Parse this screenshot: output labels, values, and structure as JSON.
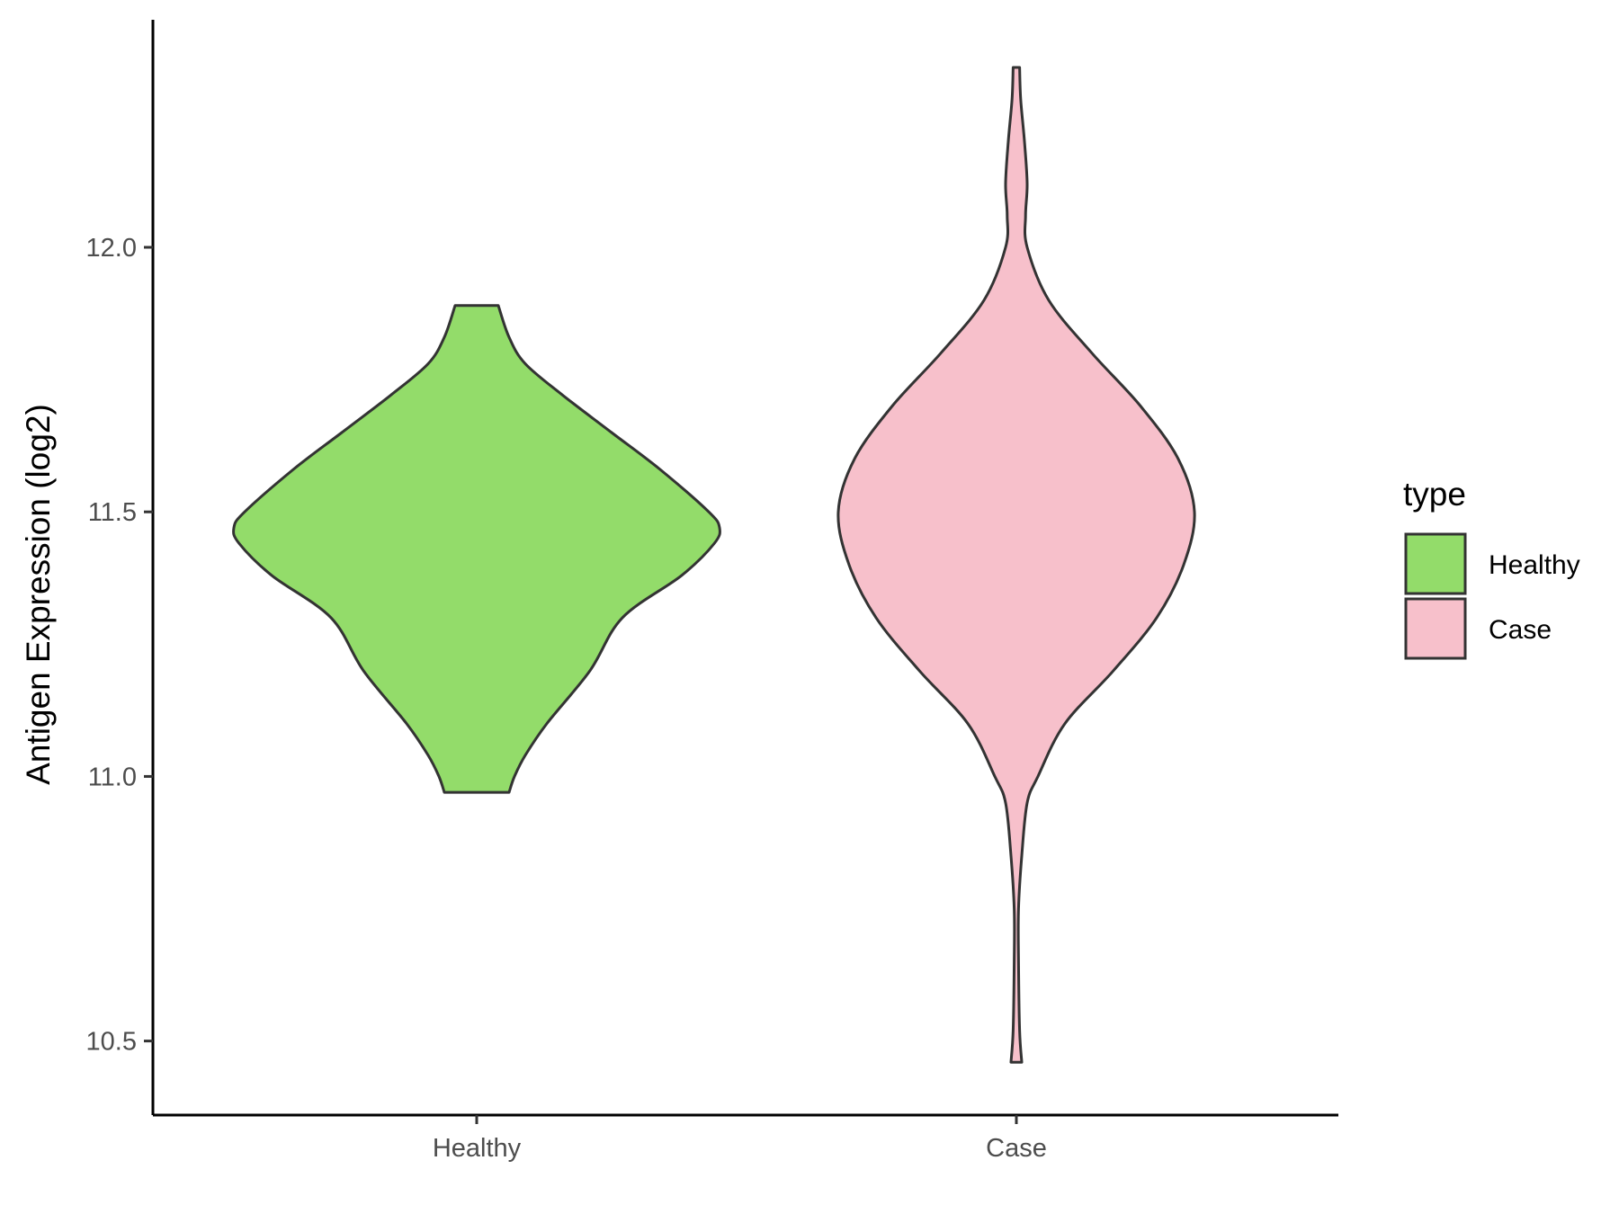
{
  "chart_data": {
    "type": "violin",
    "ylabel": "Antigen Expression (log2)",
    "xlabel": "",
    "ylim": [
      10.36,
      12.43
    ],
    "yticks": [
      10.5,
      11.0,
      11.5,
      12.0
    ],
    "ytick_labels": [
      "10.5",
      "11.0",
      "11.5",
      "12.0"
    ],
    "categories": [
      "Healthy",
      "Case"
    ],
    "grid": false,
    "legend": {
      "title": "type",
      "position": "right",
      "entries": [
        "Healthy",
        "Case"
      ]
    },
    "colors": {
      "Healthy": "#93dc6a",
      "Case": "#f7c0cb",
      "outline": "#333333"
    },
    "series": [
      {
        "name": "Healthy",
        "min": 10.97,
        "max": 11.89,
        "profile": [
          [
            10.97,
            0.06
          ],
          [
            11.0,
            0.07
          ],
          [
            11.04,
            0.09
          ],
          [
            11.1,
            0.13
          ],
          [
            11.2,
            0.21
          ],
          [
            11.3,
            0.27
          ],
          [
            11.38,
            0.38
          ],
          [
            11.44,
            0.44
          ],
          [
            11.47,
            0.45
          ],
          [
            11.5,
            0.43
          ],
          [
            11.58,
            0.34
          ],
          [
            11.65,
            0.25
          ],
          [
            11.72,
            0.16
          ],
          [
            11.78,
            0.09
          ],
          [
            11.83,
            0.06
          ],
          [
            11.89,
            0.04
          ]
        ]
      },
      {
        "name": "Case",
        "min": 10.46,
        "max": 12.34,
        "profile": [
          [
            10.46,
            0.01
          ],
          [
            10.52,
            0.006
          ],
          [
            10.65,
            0.004
          ],
          [
            10.75,
            0.004
          ],
          [
            10.85,
            0.01
          ],
          [
            10.95,
            0.02
          ],
          [
            11.0,
            0.04
          ],
          [
            11.1,
            0.09
          ],
          [
            11.2,
            0.18
          ],
          [
            11.3,
            0.26
          ],
          [
            11.4,
            0.31
          ],
          [
            11.5,
            0.33
          ],
          [
            11.6,
            0.3
          ],
          [
            11.7,
            0.23
          ],
          [
            11.8,
            0.14
          ],
          [
            11.9,
            0.06
          ],
          [
            12.0,
            0.02
          ],
          [
            12.06,
            0.017
          ],
          [
            12.12,
            0.02
          ],
          [
            12.2,
            0.015
          ],
          [
            12.28,
            0.008
          ],
          [
            12.34,
            0.006
          ]
        ]
      }
    ]
  }
}
